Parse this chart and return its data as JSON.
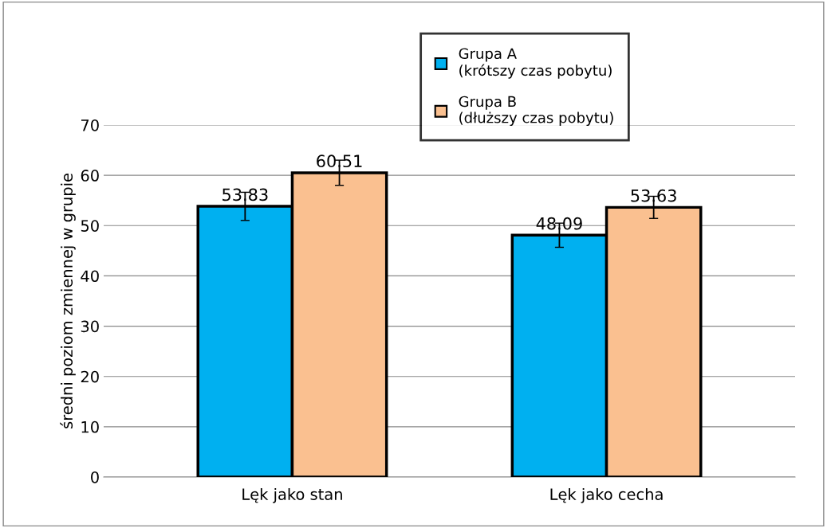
{
  "chart_data": {
    "type": "bar",
    "ylabel": "średni poziom zmiennej w grupie",
    "categories": [
      "Lęk jako stan",
      "Lęk jako cecha"
    ],
    "series": [
      {
        "name": "Grupa A\n(krótszy czas pobytu)",
        "color": "#00b0f0",
        "values": [
          53.83,
          48.09
        ],
        "errors": [
          2.8,
          2.4
        ]
      },
      {
        "name": "Grupa B\n(dłuższy czas pobytu)",
        "color": "#fac090",
        "values": [
          60.51,
          53.63
        ],
        "errors": [
          2.5,
          2.2
        ]
      }
    ],
    "ylim": [
      0,
      70
    ],
    "yticks": [
      0,
      10,
      20,
      30,
      40,
      50,
      60,
      70
    ],
    "grid": "y",
    "legend": "top",
    "data_labels": true
  }
}
